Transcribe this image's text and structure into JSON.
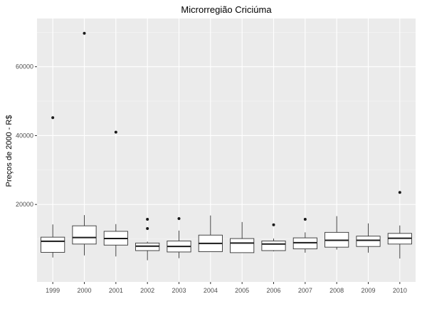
{
  "chart_data": {
    "type": "boxplot",
    "title": "Microrregião  Criciúma",
    "xlabel": "",
    "ylabel": "Preços de 2000 - R$",
    "ylim": [
      -2500,
      74000
    ],
    "y_ticks": [
      20000,
      40000,
      60000
    ],
    "grid": true,
    "legend": "none",
    "categories": [
      "1999",
      "2000",
      "2001",
      "2002",
      "2003",
      "2004",
      "2005",
      "2006",
      "2007",
      "2008",
      "2009",
      "2010"
    ],
    "boxes": [
      {
        "year": "1999",
        "whisker_low": 4600,
        "q1": 6100,
        "median": 9300,
        "q3": 10500,
        "whisker_high": 14200,
        "outliers": [
          45200
        ]
      },
      {
        "year": "2000",
        "whisker_low": 5200,
        "q1": 8500,
        "median": 10400,
        "q3": 13800,
        "whisker_high": 16900,
        "outliers": [
          69700
        ]
      },
      {
        "year": "2001",
        "whisker_low": 4900,
        "q1": 8200,
        "median": 10100,
        "q3": 12200,
        "whisker_high": 14300,
        "outliers": [
          41000
        ]
      },
      {
        "year": "2002",
        "whisker_low": 3800,
        "q1": 6600,
        "median": 7900,
        "q3": 8800,
        "whisker_high": 9200,
        "outliers": [
          13000,
          15700
        ]
      },
      {
        "year": "2003",
        "whisker_low": 4400,
        "q1": 6200,
        "median": 7800,
        "q3": 9400,
        "whisker_high": 12400,
        "outliers": [
          15900
        ]
      },
      {
        "year": "2004",
        "whisker_low": 6300,
        "q1": 6300,
        "median": 8700,
        "q3": 11100,
        "whisker_high": 16800,
        "outliers": []
      },
      {
        "year": "2005",
        "whisker_low": 6000,
        "q1": 6000,
        "median": 8800,
        "q3": 10100,
        "whisker_high": 14900,
        "outliers": []
      },
      {
        "year": "2006",
        "whisker_low": 6400,
        "q1": 6600,
        "median": 8500,
        "q3": 9400,
        "whisker_high": 10100,
        "outliers": [
          14100
        ]
      },
      {
        "year": "2007",
        "whisker_low": 6000,
        "q1": 7100,
        "median": 8900,
        "q3": 10300,
        "whisker_high": 11900,
        "outliers": [
          15700
        ]
      },
      {
        "year": "2008",
        "whisker_low": 6900,
        "q1": 7600,
        "median": 9600,
        "q3": 11900,
        "whisker_high": 16600,
        "outliers": []
      },
      {
        "year": "2009",
        "whisker_low": 6000,
        "q1": 7800,
        "median": 9600,
        "q3": 10800,
        "whisker_high": 14500,
        "outliers": []
      },
      {
        "year": "2010",
        "whisker_low": 4300,
        "q1": 8500,
        "median": 10200,
        "q3": 11600,
        "whisker_high": 13900,
        "outliers": [
          23500
        ]
      }
    ]
  }
}
